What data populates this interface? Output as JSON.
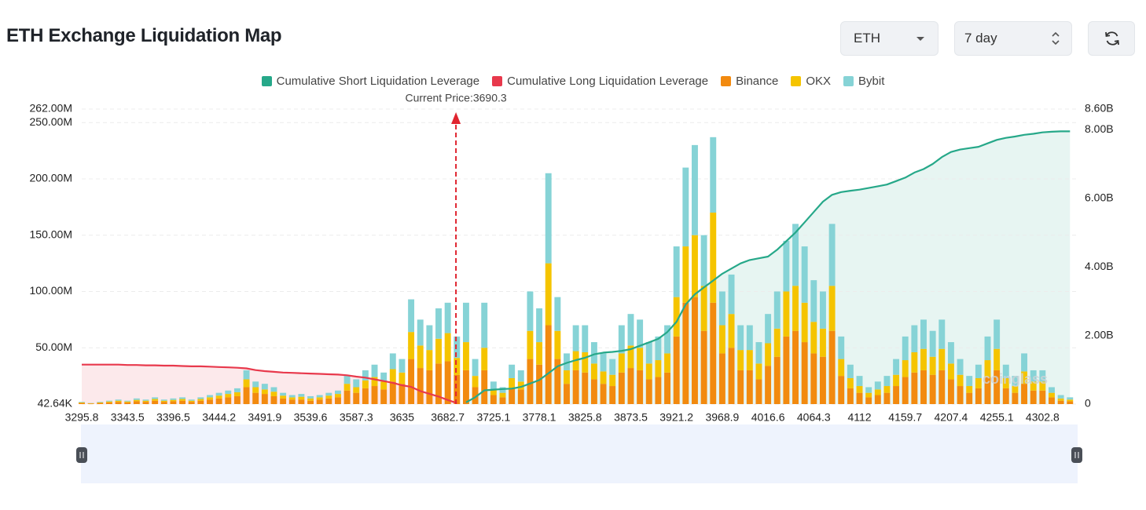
{
  "header": {
    "title": "ETH Exchange Liquidation Map",
    "coin": "ETH",
    "period": "7 day"
  },
  "chart_data": {
    "type": "bar",
    "annotation": {
      "value": 3690.3,
      "label": "Current Price:3690.3"
    },
    "watermark": "coinglass",
    "grid": true,
    "ylim": [
      0.04264,
      262
    ],
    "yticks": [
      {
        "value": 0.04264,
        "label": "42.64K"
      },
      {
        "value": 50,
        "label": "50.00M"
      },
      {
        "value": 100,
        "label": "100.00M"
      },
      {
        "value": 150,
        "label": "150.00M"
      },
      {
        "value": 200,
        "label": "200.00M"
      },
      {
        "value": 250,
        "label": "250.00M"
      },
      {
        "value": 262,
        "label": "262.00M"
      }
    ],
    "y2lim": [
      0,
      8.6
    ],
    "y2ticks": [
      0,
      {
        "value": 2,
        "label": "2.00B"
      },
      {
        "value": 4,
        "label": "4.00B"
      },
      {
        "value": 6,
        "label": "6.00B"
      },
      {
        "value": 8,
        "label": "8.00B"
      },
      {
        "value": 8.6,
        "label": "8.60B"
      }
    ],
    "categories": [
      "3295.8",
      null,
      null,
      null,
      null,
      "3343.5",
      null,
      null,
      null,
      null,
      "3396.5",
      null,
      null,
      null,
      null,
      "3444.2",
      null,
      null,
      null,
      null,
      "3491.9",
      null,
      null,
      null,
      null,
      "3539.6",
      null,
      null,
      null,
      null,
      "3587.3",
      null,
      null,
      null,
      null,
      "3635",
      null,
      null,
      null,
      null,
      "3682.7",
      null,
      null,
      null,
      null,
      "3725.1",
      null,
      null,
      null,
      null,
      "3778.1",
      null,
      null,
      null,
      null,
      "3825.8",
      null,
      null,
      null,
      null,
      "3873.5",
      null,
      null,
      null,
      null,
      "3921.2",
      null,
      null,
      null,
      null,
      "3968.9",
      null,
      null,
      null,
      null,
      "4016.6",
      null,
      null,
      null,
      null,
      "4064.3",
      null,
      null,
      null,
      null,
      "4112",
      null,
      null,
      null,
      null,
      "4159.7",
      null,
      null,
      null,
      null,
      "4207.4",
      null,
      null,
      null,
      null,
      "4255.1",
      null,
      null,
      null,
      null,
      "4302.8",
      null,
      null,
      null
    ],
    "series": [
      {
        "name": "Cumulative Short Liquidation Leverage",
        "type": "line",
        "axis": "y2",
        "color": "#26a889",
        "area": "rgba(38,168,137,0.11)",
        "values": [
          null,
          null,
          null,
          null,
          null,
          null,
          null,
          null,
          null,
          null,
          null,
          null,
          null,
          null,
          null,
          null,
          null,
          null,
          null,
          null,
          null,
          null,
          null,
          null,
          null,
          null,
          null,
          null,
          null,
          null,
          null,
          null,
          null,
          null,
          null,
          null,
          null,
          null,
          null,
          null,
          null,
          null,
          0.05,
          0.2,
          0.4,
          0.42,
          0.44,
          0.45,
          0.5,
          0.6,
          0.7,
          0.9,
          1.1,
          1.2,
          1.28,
          1.35,
          1.45,
          1.5,
          1.52,
          1.55,
          1.6,
          1.7,
          1.8,
          1.9,
          2.1,
          2.4,
          2.9,
          3.2,
          3.4,
          3.6,
          3.8,
          3.95,
          4.1,
          4.2,
          4.25,
          4.3,
          4.5,
          4.75,
          5.0,
          5.3,
          5.6,
          5.9,
          6.1,
          6.18,
          6.22,
          6.25,
          6.3,
          6.35,
          6.4,
          6.5,
          6.6,
          6.75,
          6.85,
          7.0,
          7.2,
          7.35,
          7.42,
          7.46,
          7.5,
          7.6,
          7.7,
          7.76,
          7.8,
          7.85,
          7.88,
          7.92,
          7.94,
          7.95,
          7.95
        ]
      },
      {
        "name": "Cumulative Long Liquidation Leverage",
        "type": "line",
        "axis": "y2",
        "color": "#e8394c",
        "area": "rgba(232,57,76,0.11)",
        "values": [
          1.15,
          1.15,
          1.15,
          1.15,
          1.15,
          1.14,
          1.14,
          1.13,
          1.13,
          1.12,
          1.12,
          1.11,
          1.1,
          1.1,
          1.09,
          1.08,
          1.07,
          1.06,
          1.04,
          0.99,
          0.96,
          0.94,
          0.92,
          0.91,
          0.9,
          0.89,
          0.88,
          0.87,
          0.86,
          0.84,
          0.8,
          0.77,
          0.72,
          0.67,
          0.62,
          0.55,
          0.5,
          0.38,
          0.3,
          0.22,
          0.12,
          0.03,
          null,
          null,
          null,
          null,
          null,
          null,
          null,
          null,
          null,
          null,
          null,
          null,
          null,
          null,
          null,
          null,
          null,
          null,
          null,
          null,
          null,
          null,
          null,
          null,
          null,
          null,
          null,
          null,
          null,
          null,
          null,
          null,
          null,
          null,
          null,
          null,
          null,
          null,
          null,
          null,
          null,
          null,
          null,
          null,
          null,
          null,
          null,
          null,
          null,
          null,
          null,
          null,
          null,
          null,
          null,
          null,
          null,
          null,
          null,
          null,
          null,
          null,
          null,
          null,
          null,
          null,
          null
        ]
      },
      {
        "name": "Binance",
        "type": "bar",
        "color": "#f28a0f",
        "values": [
          1,
          0.5,
          1,
          1.5,
          2,
          1.5,
          2.5,
          2,
          3,
          2,
          2.5,
          3,
          2,
          3,
          4,
          5,
          6,
          7,
          15,
          10,
          9,
          7,
          5,
          4,
          4,
          3,
          4,
          5,
          6,
          12,
          10,
          14,
          16,
          13,
          20,
          18,
          40,
          32,
          30,
          36,
          38,
          26,
          30,
          15,
          30,
          8,
          6,
          14,
          13,
          40,
          35,
          70,
          40,
          18,
          30,
          28,
          22,
          18,
          16,
          28,
          32,
          30,
          22,
          24,
          28,
          60,
          90,
          95,
          65,
          90,
          45,
          50,
          30,
          30,
          22,
          34,
          42,
          60,
          65,
          55,
          45,
          42,
          65,
          25,
          14,
          10,
          6,
          8,
          10,
          16,
          24,
          28,
          30,
          26,
          30,
          22,
          16,
          10,
          14,
          24,
          30,
          14,
          10,
          18,
          12,
          12,
          6,
          3,
          2.5
        ]
      },
      {
        "name": "OKX",
        "type": "bar",
        "color": "#f5c400",
        "values": [
          0.5,
          0.3,
          0.5,
          0.8,
          1,
          0.8,
          1.2,
          1,
          1.5,
          1,
          1.2,
          1.5,
          1,
          1.5,
          2,
          2.5,
          3,
          3.5,
          7,
          5,
          4,
          4,
          2.5,
          2,
          2.5,
          2,
          2,
          2.5,
          3,
          6,
          5,
          7,
          8,
          7,
          11,
          10,
          24,
          20,
          18,
          22,
          25,
          15,
          25,
          10,
          20,
          5,
          4,
          9,
          7,
          25,
          20,
          55,
          25,
          12,
          17,
          18,
          14,
          11,
          10,
          17,
          20,
          20,
          14,
          15,
          17,
          35,
          50,
          55,
          40,
          80,
          25,
          30,
          18,
          18,
          14,
          20,
          25,
          40,
          40,
          35,
          28,
          25,
          40,
          15,
          9,
          6,
          4,
          5,
          6,
          10,
          15,
          18,
          19,
          16,
          19,
          14,
          10,
          6,
          9,
          15,
          19,
          9,
          6,
          11,
          8,
          8,
          4,
          2,
          1.5
        ]
      },
      {
        "name": "Bybit",
        "type": "bar",
        "color": "#86d3d6",
        "values": [
          0.5,
          0.2,
          0.5,
          0.7,
          1,
          0.7,
          1.3,
          1,
          1.5,
          1,
          1.3,
          1.5,
          1,
          1.5,
          2,
          2.5,
          3,
          3.5,
          8,
          5,
          5,
          4,
          2.5,
          2,
          2.5,
          2,
          2,
          2.5,
          3,
          7,
          7,
          9,
          11,
          8,
          14,
          12,
          29,
          23,
          22,
          27,
          27,
          19,
          35,
          15,
          40,
          7,
          5,
          12,
          10,
          35,
          30,
          80,
          30,
          15,
          23,
          24,
          19,
          16,
          14,
          25,
          28,
          25,
          19,
          21,
          25,
          45,
          70,
          80,
          45,
          67,
          30,
          35,
          22,
          22,
          19,
          26,
          33,
          45,
          55,
          50,
          37,
          33,
          55,
          20,
          12,
          9,
          5,
          7,
          9,
          14,
          21,
          24,
          26,
          23,
          26,
          19,
          14,
          9,
          12,
          21,
          26,
          12,
          9,
          16,
          10,
          10,
          5,
          3,
          2
        ]
      }
    ]
  }
}
